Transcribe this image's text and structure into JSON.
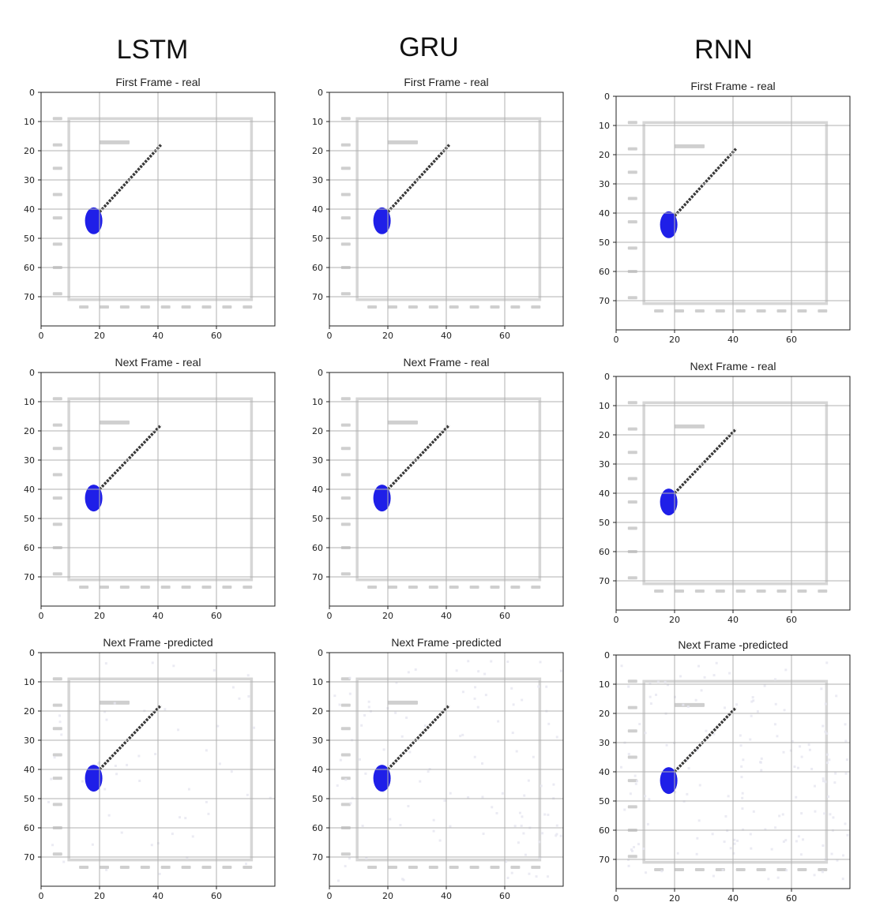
{
  "columns": [
    "LSTM",
    "GRU",
    "RNN"
  ],
  "row_titles": [
    "First Frame  - real",
    "Next Frame - real",
    "Next Frame  -predicted"
  ],
  "colors": {
    "ball": "#1f1fe8",
    "rod": "#3a3a3a",
    "frame": "#d6d6d6",
    "grid": "#b0b0b0"
  },
  "chart_data": [
    {
      "type": "image",
      "model": "LSTM",
      "title": "First Frame  - real",
      "xlim": [
        0,
        80
      ],
      "ylim": [
        80,
        0
      ],
      "xticks": [
        0,
        20,
        40,
        60
      ],
      "yticks": [
        0,
        10,
        20,
        30,
        40,
        50,
        60,
        70
      ],
      "grid": true,
      "ball": [
        18,
        44
      ],
      "rod_end": [
        41,
        18
      ],
      "noise": 0
    },
    {
      "type": "image",
      "model": "GRU",
      "title": "First Frame  - real",
      "xlim": [
        0,
        80
      ],
      "ylim": [
        80,
        0
      ],
      "xticks": [
        0,
        20,
        40,
        60
      ],
      "yticks": [
        0,
        10,
        20,
        30,
        40,
        50,
        60,
        70
      ],
      "grid": true,
      "ball": [
        18,
        44
      ],
      "rod_end": [
        41,
        18
      ],
      "noise": 0
    },
    {
      "type": "image",
      "model": "RNN",
      "title": "First Frame  - real",
      "xlim": [
        0,
        80
      ],
      "ylim": [
        80,
        0
      ],
      "xticks": [
        0,
        20,
        40,
        60
      ],
      "yticks": [
        0,
        10,
        20,
        30,
        40,
        50,
        60,
        70
      ],
      "grid": true,
      "ball": [
        18,
        44
      ],
      "rod_end": [
        41,
        18
      ],
      "noise": 0
    },
    {
      "type": "image",
      "model": "LSTM",
      "title": "Next Frame - real",
      "xlim": [
        0,
        80
      ],
      "ylim": [
        80,
        0
      ],
      "xticks": [
        0,
        20,
        40,
        60
      ],
      "yticks": [
        0,
        10,
        20,
        30,
        40,
        50,
        60,
        70
      ],
      "grid": true,
      "ball": [
        18,
        43
      ],
      "rod_end": [
        41,
        18
      ],
      "noise": 0
    },
    {
      "type": "image",
      "model": "GRU",
      "title": "Next Frame - real",
      "xlim": [
        0,
        80
      ],
      "ylim": [
        80,
        0
      ],
      "xticks": [
        0,
        20,
        40,
        60
      ],
      "yticks": [
        0,
        10,
        20,
        30,
        40,
        50,
        60,
        70
      ],
      "grid": true,
      "ball": [
        18,
        43
      ],
      "rod_end": [
        41,
        18
      ],
      "noise": 0
    },
    {
      "type": "image",
      "model": "RNN",
      "title": "Next Frame - real",
      "xlim": [
        0,
        80
      ],
      "ylim": [
        80,
        0
      ],
      "xticks": [
        0,
        20,
        40,
        60
      ],
      "yticks": [
        0,
        10,
        20,
        30,
        40,
        50,
        60,
        70
      ],
      "grid": true,
      "ball": [
        18,
        43
      ],
      "rod_end": [
        41,
        18
      ],
      "noise": 0
    },
    {
      "type": "image",
      "model": "LSTM",
      "title": "Next Frame  -predicted",
      "xlim": [
        0,
        80
      ],
      "ylim": [
        80,
        0
      ],
      "xticks": [
        0,
        20,
        40,
        60
      ],
      "yticks": [
        0,
        10,
        20,
        30,
        40,
        50,
        60,
        70
      ],
      "grid": true,
      "ball": [
        18,
        43
      ],
      "rod_end": [
        41,
        18
      ],
      "noise": 1
    },
    {
      "type": "image",
      "model": "GRU",
      "title": "Next Frame  -predicted",
      "xlim": [
        0,
        80
      ],
      "ylim": [
        80,
        0
      ],
      "xticks": [
        0,
        20,
        40,
        60
      ],
      "yticks": [
        0,
        10,
        20,
        30,
        40,
        50,
        60,
        70
      ],
      "grid": true,
      "ball": [
        18,
        43
      ],
      "rod_end": [
        41,
        18
      ],
      "noise": 2
    },
    {
      "type": "image",
      "model": "RNN",
      "title": "Next Frame  -predicted",
      "xlim": [
        0,
        80
      ],
      "ylim": [
        80,
        0
      ],
      "xticks": [
        0,
        20,
        40,
        60
      ],
      "yticks": [
        0,
        10,
        20,
        30,
        40,
        50,
        60,
        70
      ],
      "grid": true,
      "ball": [
        18,
        43
      ],
      "rod_end": [
        41,
        18
      ],
      "noise": 3
    }
  ]
}
